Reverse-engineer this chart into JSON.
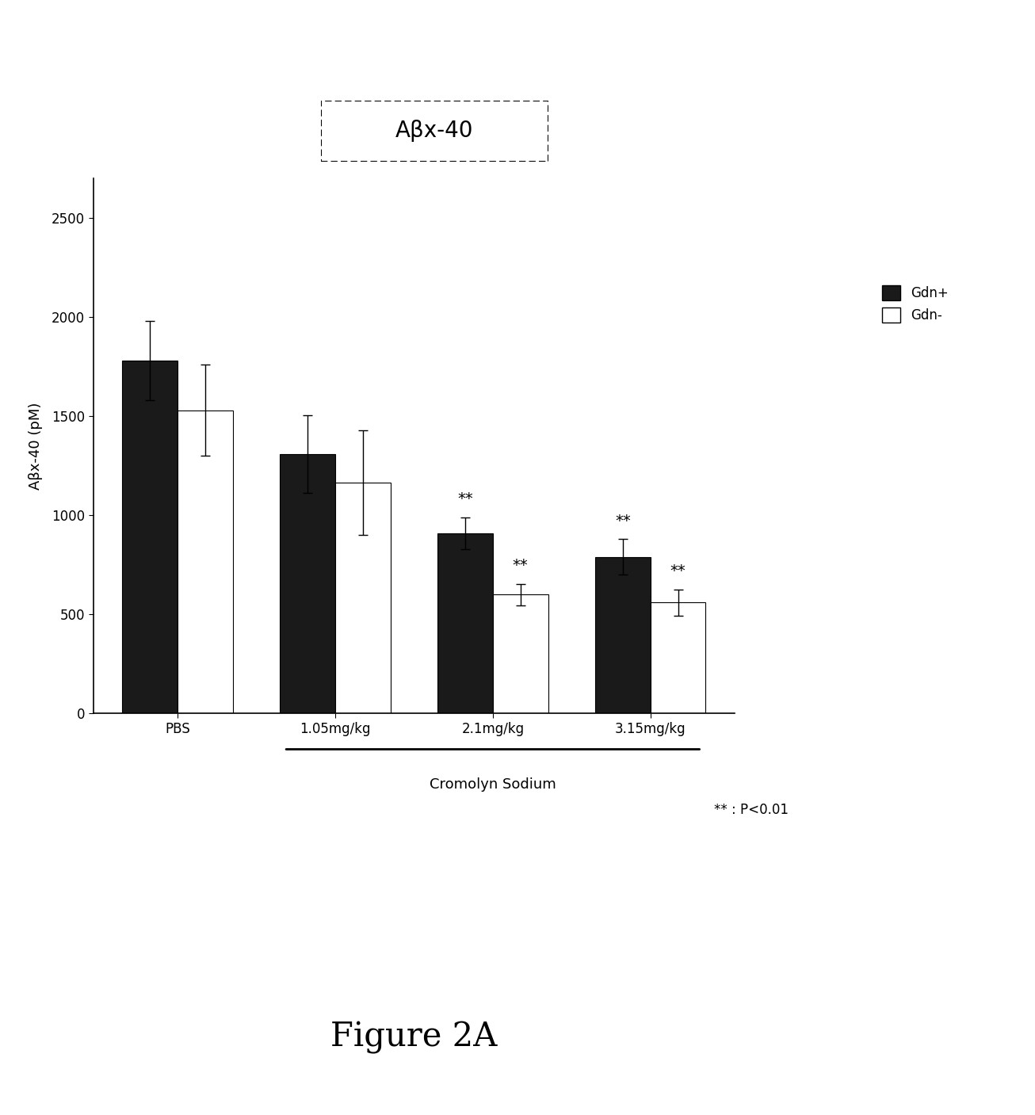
{
  "title": "Aβx-40",
  "ylabel": "Aβx-40 (pM)",
  "xlabel_main": "Cromolyn Sodium",
  "figure_label": "Figure 2A",
  "categories": [
    "PBS",
    "1.05mg/kg",
    "2.1mg/kg",
    "3.15mg/kg"
  ],
  "gdn_plus_values": [
    1780,
    1310,
    910,
    790
  ],
  "gdn_minus_values": [
    1530,
    1165,
    600,
    560
  ],
  "gdn_plus_errors": [
    200,
    195,
    80,
    90
  ],
  "gdn_minus_errors": [
    230,
    265,
    55,
    65
  ],
  "gdn_plus_sig": [
    false,
    false,
    true,
    true
  ],
  "gdn_minus_sig": [
    false,
    false,
    true,
    true
  ],
  "ylim": [
    0,
    2700
  ],
  "yticks": [
    0,
    500,
    1000,
    1500,
    2000,
    2500
  ],
  "bar_width": 0.35,
  "gdn_plus_color": "#1a1a1a",
  "gdn_minus_color": "#ffffff",
  "legend_labels": [
    "Gdn+",
    "Gdn-"
  ],
  "significance_label": "**",
  "significance_text": "** : P<0.01",
  "background_color": "#ffffff"
}
